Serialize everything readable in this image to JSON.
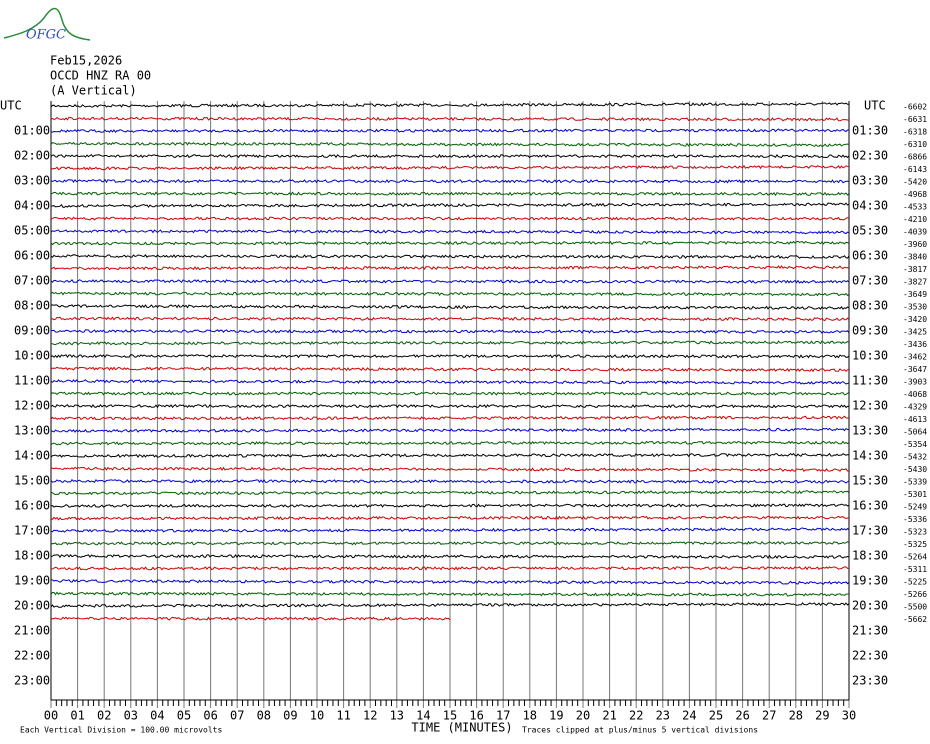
{
  "logo": "OFGC",
  "chart_data": {
    "type": "helicorder",
    "date": "Feb15,2026",
    "station": "OCCD HNZ RA 00",
    "component": "(A Vertical)",
    "left_utc": "UTC",
    "right_utc": "UTC",
    "left_hours": [
      "01:00",
      "02:00",
      "03:00",
      "04:00",
      "05:00",
      "06:00",
      "07:00",
      "08:00",
      "09:00",
      "10:00",
      "11:00",
      "12:00",
      "13:00",
      "14:00",
      "15:00",
      "16:00",
      "17:00",
      "18:00",
      "19:00",
      "20:00",
      "21:00",
      "22:00",
      "23:00"
    ],
    "right_hours": [
      "01:30",
      "02:30",
      "03:30",
      "04:30",
      "05:30",
      "06:30",
      "07:30",
      "08:30",
      "09:30",
      "10:30",
      "11:30",
      "12:30",
      "13:30",
      "14:30",
      "15:30",
      "16:30",
      "17:30",
      "18:30",
      "19:30",
      "20:30",
      "21:30",
      "22:30",
      "23:30"
    ],
    "trace_offsets": [
      "-6602",
      "-6631",
      "-6318",
      "-6310",
      "-6866",
      "-6143",
      "-5420",
      "-4968",
      "-4533",
      "-4210",
      "-4039",
      "-3960",
      "-3840",
      "-3817",
      "-3827",
      "-3649",
      "-3530",
      "-3420",
      "-3425",
      "-3436",
      "-3462",
      "-3647",
      "-3903",
      "-4068",
      "-4329",
      "-4613",
      "-5064",
      "-5354",
      "-5432",
      "-5430",
      "-5339",
      "-5301",
      "-5249",
      "-5336",
      "-5323",
      "-5325",
      "-5264",
      "-5311",
      "-5225",
      "-5266",
      "-5500",
      "-5662"
    ],
    "trace_colors": [
      "#000000",
      "#d00000",
      "#0000d0",
      "#006000"
    ],
    "last_trace_end_minute": 15,
    "xlim": [
      0,
      30
    ],
    "xticks": [
      {
        "value": 0,
        "label": "00"
      },
      {
        "value": 1,
        "label": "01"
      },
      {
        "value": 2,
        "label": "02"
      },
      {
        "value": 3,
        "label": "03"
      },
      {
        "value": 4,
        "label": "04"
      },
      {
        "value": 5,
        "label": "05"
      },
      {
        "value": 6,
        "label": "06"
      },
      {
        "value": 7,
        "label": "07"
      },
      {
        "value": 8,
        "label": "08"
      },
      {
        "value": 9,
        "label": "09"
      },
      10,
      11,
      12,
      13,
      14,
      15,
      16,
      17,
      18,
      19,
      20,
      21,
      22,
      23,
      24,
      25,
      26,
      27,
      28,
      29,
      30
    ],
    "x_label": "TIME (MINUTES)",
    "scale_note": "Each Vertical Division =  100.00 microvolts",
    "clip_note": "Traces clipped at plus/minus 5 vertical divisions"
  }
}
